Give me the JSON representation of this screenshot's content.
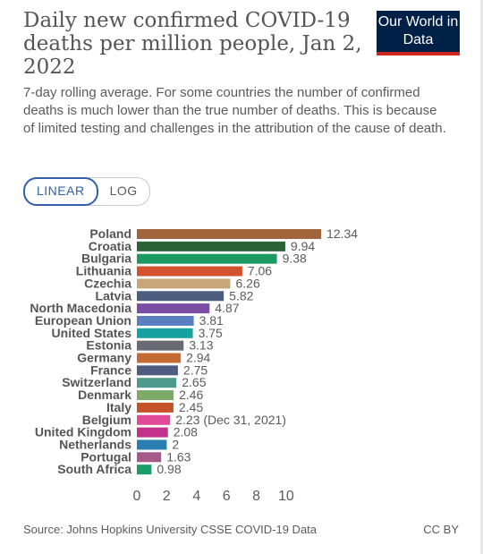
{
  "header": {
    "title": "Daily new confirmed COVID-19 deaths per million people, Jan 2, 2022",
    "subtitle": "7-day rolling average. For some countries the number of confirmed deaths is much lower than the true number of deaths. This is because of limited testing and challenges in the attribution of the cause of death.",
    "logo": "Our World in Data"
  },
  "controls": {
    "linear_label": "LINEAR",
    "log_label": "LOG",
    "active": "LINEAR"
  },
  "footer": {
    "source": "Source: Johns Hopkins University CSSE COVID-19 Data",
    "license": "CC BY"
  },
  "colors": {
    "logo_background": "#002147",
    "logo_underline": "#ce261e",
    "toggle_active": "#3360a9"
  },
  "chart_data": {
    "type": "bar",
    "orientation": "horizontal",
    "categories": [
      "Poland",
      "Croatia",
      "Bulgaria",
      "Lithuania",
      "Czechia",
      "Latvia",
      "North Macedonia",
      "European Union",
      "United States",
      "Estonia",
      "Germany",
      "France",
      "Switzerland",
      "Denmark",
      "Italy",
      "Belgium",
      "United Kingdom",
      "Netherlands",
      "Portugal",
      "South Africa"
    ],
    "values": [
      12.34,
      9.94,
      9.38,
      7.06,
      6.26,
      5.82,
      4.87,
      3.81,
      3.75,
      3.13,
      2.94,
      2.75,
      2.65,
      2.46,
      2.45,
      2.23,
      2.08,
      2,
      1.63,
      0.98
    ],
    "value_labels": [
      "12.34",
      "9.94",
      "9.38",
      "7.06",
      "6.26",
      "5.82",
      "4.87",
      "3.81",
      "3.75",
      "3.13",
      "2.94",
      "2.75",
      "2.65",
      "2.46",
      "2.45",
      "2.23 (Dec 31, 2021)",
      "2.08",
      "2",
      "1.63",
      "0.98"
    ],
    "colors": [
      "#a2643b",
      "#2a6236",
      "#1b9a61",
      "#d2522e",
      "#c9a679",
      "#4d5d7e",
      "#7a4ea5",
      "#5b7ec0",
      "#17a2a2",
      "#6a6a73",
      "#c56a33",
      "#4e5c82",
      "#4d9a8a",
      "#7eaa67",
      "#c45128",
      "#e04a96",
      "#c2318a",
      "#2a7eb0",
      "#a65a8a",
      "#1c9e6b"
    ],
    "xticks": [
      0,
      2,
      4,
      6,
      8,
      10
    ],
    "xlim": [
      0,
      12.34
    ],
    "grid": false,
    "legend": "none"
  }
}
